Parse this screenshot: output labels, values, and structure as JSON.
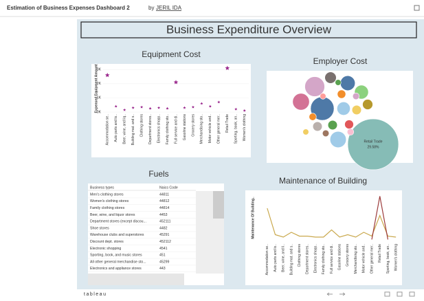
{
  "header": {
    "title": "Estimation of Business Expenses Dashboard 2",
    "by": "by",
    "author": "JERIL IDA"
  },
  "dashboard_title": "Business Expenditure Overview",
  "chart_data": [
    {
      "type": "star-scatter",
      "title": "Equipment Cost",
      "y_label": "Expensed Equipment Amount",
      "color": "#9b2a8e",
      "categories": [
        "Accommodation se..",
        "Auto parts and lo..",
        "Beer, wine, and liq..",
        "Building mat. and s..",
        "Clothing stores",
        "Department stores..",
        "Electronics shopp..",
        "Family clothing sto..",
        "Full service and di..",
        "Gasoline stations",
        "Grocery stores",
        "Merchandising sto..",
        "Motor vehicle and..",
        "Other general mer..",
        "Retail Trade",
        "Sporting, book, an..",
        "Women's clothing"
      ],
      "values": [
        2600,
        400,
        150,
        300,
        350,
        250,
        300,
        250,
        2100,
        300,
        350,
        600,
        400,
        700,
        3100,
        200,
        100
      ],
      "ylim": [
        0,
        3300
      ],
      "yticks": [
        {
          "value": 0,
          "label": "0K"
        },
        {
          "value": 1000,
          "label": "1K"
        },
        {
          "value": 2000,
          "label": "2K"
        },
        {
          "value": 3000,
          "label": "3K"
        }
      ]
    },
    {
      "type": "bubble",
      "title": "Employer Cost",
      "categories": [
        "Retail Trade",
        null,
        null,
        null,
        null,
        null,
        null,
        null,
        null,
        null,
        null,
        null,
        null,
        null,
        null,
        null,
        null,
        null,
        null,
        null,
        null,
        null
      ],
      "values": [
        29.58,
        6.3,
        4.5,
        3.2,
        2.5,
        1.5,
        2.2,
        2.0,
        1.2,
        1.0,
        3.0,
        1.0,
        1.0,
        0.9,
        0.6,
        0.4,
        0.8,
        0.5,
        0.4,
        0.5,
        0.5,
        0.4
      ],
      "value_labels": [
        "29.58%",
        null,
        null,
        null,
        null,
        null,
        null,
        null,
        null,
        null,
        null,
        null,
        null,
        null,
        null,
        null,
        null,
        null,
        null,
        null,
        null,
        null
      ],
      "colors": [
        "#86bcb6",
        "#4e79a7",
        "#d4a6c8",
        "#d37295",
        "#4e79a7",
        "#79706e",
        "#8cd17d",
        "#a0cbe8",
        "#b6992d",
        "#f1ce63",
        "#a0cbe8",
        "#59a14f",
        "#bab0ac",
        "#e15759",
        "#f28e2b",
        "#ff9d9a",
        "#f28e2b",
        "#d4a6c8",
        "#59a14f",
        "#fabfd2",
        "#9d7660",
        "#f1ce63"
      ]
    },
    {
      "type": "line",
      "title": "Maintenance of Building",
      "y_label": "Maintenance Of Building..",
      "categories": [
        "Accommodation se..",
        "Auto parts and lo..",
        "Beer, wine, and li..",
        "Building mat. and s..",
        "Clothing stores",
        "Department stores..",
        "Electronics shopp..",
        "Family clothing sto..",
        "Full service and di..",
        "Gasoline stations",
        "Grocery stores",
        "Merchandising sto..",
        "Motor vehicle and..",
        "Other general mer..",
        "Retail Trade",
        "Sporting, book, an..",
        "Women's clothing"
      ],
      "ylim": [
        0,
        100
      ],
      "series": [
        {
          "color": "#c9a84c",
          "values": [
            70,
            15,
            10,
            20,
            12,
            12,
            10,
            10,
            25,
            10,
            15,
            10,
            20,
            12,
            55,
            12,
            10
          ]
        },
        {
          "color": "#9c3b3b",
          "values": [
            null,
            null,
            null,
            null,
            null,
            null,
            null,
            null,
            null,
            null,
            null,
            null,
            null,
            5,
            95,
            5,
            null
          ]
        }
      ]
    }
  ],
  "fuels": {
    "title": "Fuels",
    "columns": [
      "Business types",
      "Naics Code"
    ],
    "rows": [
      [
        "Men's clothing stores",
        44811
      ],
      [
        "Women's clothing stores",
        44812
      ],
      [
        "Family clothing stores",
        44814
      ],
      [
        "Beer, wine, and liquor stores",
        4453
      ],
      [
        "Department stores (except discou...",
        452111
      ],
      [
        "Shoe stores",
        4482
      ],
      [
        "Warehouse clubs and superstores",
        45291
      ],
      [
        "Discount dept. stores",
        452112
      ],
      [
        "Electronic shopping",
        4541
      ],
      [
        "Sporting, book, and music stores",
        451
      ],
      [
        "All other general merchandise sto...",
        45299
      ],
      [
        "Electronics and appliance stores",
        443
      ]
    ]
  },
  "footer": {
    "logo": "tableau"
  }
}
